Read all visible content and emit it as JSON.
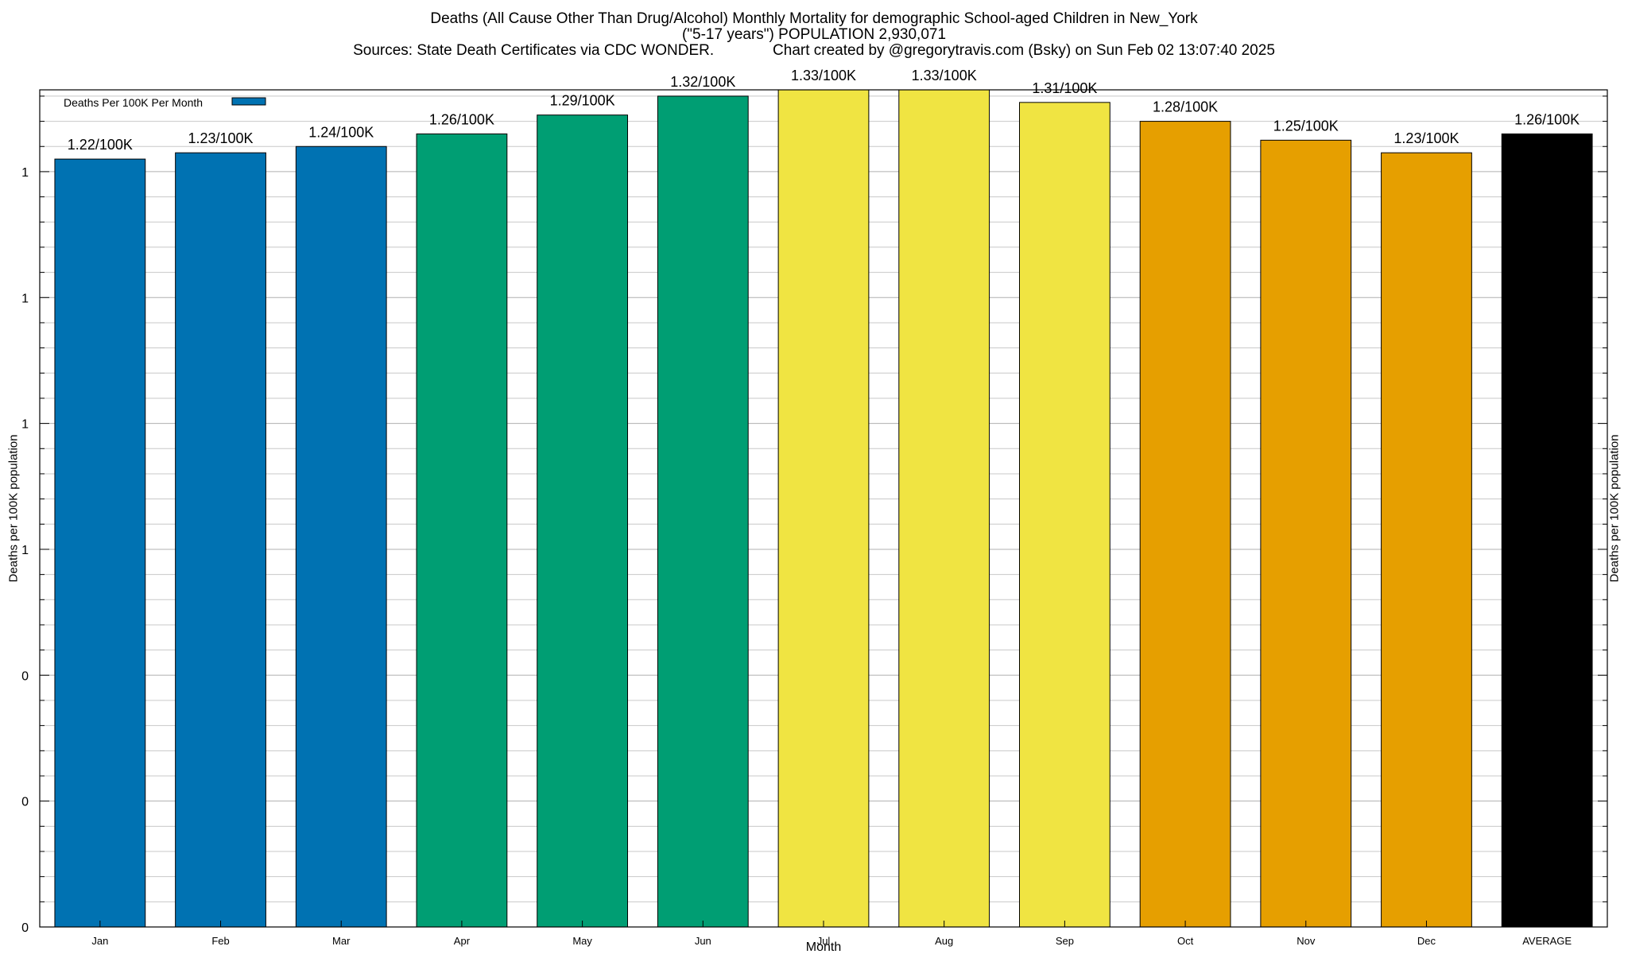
{
  "title": {
    "line1": "Deaths (All Cause Other Than Drug/Alcohol) Monthly Mortality for demographic School-aged Children in New_York",
    "line2": "(\"5-17 years\") POPULATION 2,930,071",
    "sources": "Sources: State Death Certificates via CDC WONDER.",
    "credit": "Chart created by @gregorytravis.com (Bsky) on Sun Feb 02 13:07:40 2025"
  },
  "chart_data": {
    "type": "bar",
    "categories": [
      "Jan",
      "Feb",
      "Mar",
      "Apr",
      "May",
      "Jun",
      "Jul",
      "Aug",
      "Sep",
      "Oct",
      "Nov",
      "Dec",
      "AVERAGE"
    ],
    "values": [
      1.22,
      1.23,
      1.24,
      1.26,
      1.29,
      1.32,
      1.33,
      1.33,
      1.31,
      1.28,
      1.25,
      1.23,
      1.26
    ],
    "data_labels": [
      "1.22/100K",
      "1.23/100K",
      "1.24/100K",
      "1.26/100K",
      "1.29/100K",
      "1.32/100K",
      "1.33/100K",
      "1.33/100K",
      "1.31/100K",
      "1.28/100K",
      "1.25/100K",
      "1.23/100K",
      "1.26/100K"
    ],
    "colors": [
      "#0072b2",
      "#0072b2",
      "#0072b2",
      "#009e73",
      "#009e73",
      "#009e73",
      "#f0e442",
      "#f0e442",
      "#f0e442",
      "#e69f00",
      "#e69f00",
      "#e69f00",
      "#000000"
    ],
    "xlabel": "Month",
    "ylabel": "Deaths per 100K population",
    "ylabel_right": "Deaths per 100K population",
    "ylim": [
      0,
      1.33
    ],
    "ytick_labels": [
      "0",
      "0",
      "0",
      "1",
      "1",
      "1",
      "1"
    ],
    "legend": {
      "label": "Deaths Per 100K Per Month",
      "color": "#0072b2",
      "position": "top-left"
    },
    "grid": true
  }
}
